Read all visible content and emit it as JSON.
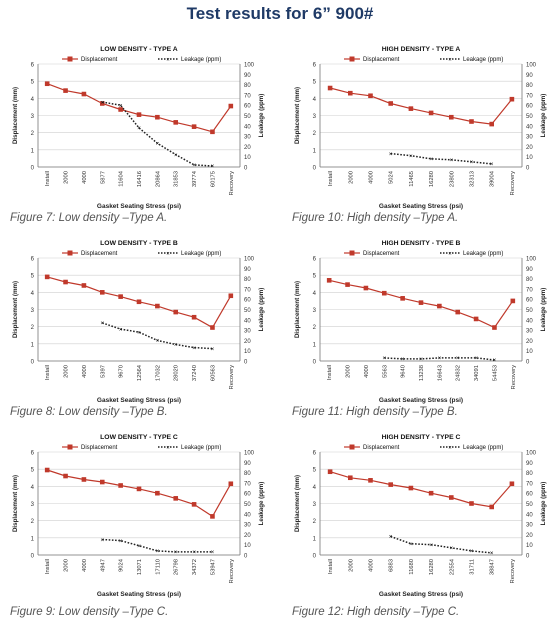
{
  "page": {
    "title": "Test results for 6” 900#"
  },
  "chart_data": [
    {
      "type": "line",
      "title": "LOW DENSITY - TYPE A",
      "caption": "Figure 7: Low density –Type A.",
      "categories": [
        "Install",
        "2000",
        "4000",
        "5877",
        "11604",
        "16416",
        "20864",
        "31853",
        "39774",
        "60175",
        "Recovery"
      ],
      "xlabel": "Gasket Seating Stress (psi)",
      "ylabel": "Displacement (mm)",
      "y2label": "Leakage (ppm)",
      "ylim": [
        0,
        6
      ],
      "y2lim": [
        0,
        100
      ],
      "legend": [
        "Displacement",
        "Leakage (ppm)"
      ],
      "series": [
        {
          "name": "Displacement",
          "axis": "left",
          "values": [
            4.85,
            4.45,
            4.25,
            3.7,
            3.35,
            3.05,
            2.9,
            2.6,
            2.35,
            2.05,
            3.55
          ]
        },
        {
          "name": "Leakage (ppm)",
          "axis": "right",
          "values": [
            null,
            null,
            null,
            63,
            60,
            38,
            23,
            12,
            2,
            1,
            null
          ]
        }
      ]
    },
    {
      "type": "line",
      "title": "HIGH DENSITY - TYPE A",
      "caption": "Figure 10: High density –Type A.",
      "categories": [
        "Install",
        "2000",
        "4000",
        "5024",
        "11465",
        "16280",
        "23800",
        "32313",
        "39004",
        "Recovery"
      ],
      "xlabel": "Gasket Seating Stress (psi)",
      "ylabel": "Displacement (mm)",
      "y2label": "Leakage (ppm)",
      "ylim": [
        0,
        6
      ],
      "y2lim": [
        0,
        100
      ],
      "legend": [
        "Displacement",
        "Leakage (ppm)"
      ],
      "series": [
        {
          "name": "Displacement",
          "axis": "left",
          "values": [
            4.6,
            4.3,
            4.15,
            3.7,
            3.4,
            3.15,
            2.9,
            2.65,
            2.5,
            3.95
          ]
        },
        {
          "name": "Leakage (ppm)",
          "axis": "right",
          "values": [
            null,
            null,
            null,
            13,
            11,
            8,
            7,
            5,
            3,
            null
          ]
        }
      ]
    },
    {
      "type": "line",
      "title": "LOW DENSITY - TYPE B",
      "caption": "Figure 8: Low density –Type B.",
      "categories": [
        "Install",
        "2000",
        "4000",
        "5397",
        "9670",
        "12564",
        "17032",
        "28020",
        "37240",
        "60563",
        "Recovery"
      ],
      "xlabel": "Gasket Seating Stress (psi)",
      "ylabel": "Displacement (mm)",
      "y2label": "Leakage (ppm)",
      "ylim": [
        0,
        6
      ],
      "y2lim": [
        0,
        100
      ],
      "legend": [
        "Displacement",
        "Leakage (ppm)"
      ],
      "series": [
        {
          "name": "Displacement",
          "axis": "left",
          "values": [
            4.9,
            4.6,
            4.4,
            4.0,
            3.75,
            3.45,
            3.2,
            2.85,
            2.55,
            1.95,
            3.8
          ]
        },
        {
          "name": "Leakage (ppm)",
          "axis": "right",
          "values": [
            null,
            null,
            null,
            37,
            31,
            28,
            20,
            16,
            13,
            12,
            null
          ]
        }
      ]
    },
    {
      "type": "line",
      "title": "HIGH DENSITY - TYPE B",
      "caption": "Figure 11: High density –Type B.",
      "categories": [
        "Install",
        "2000",
        "4000",
        "5563",
        "9640",
        "13238",
        "16643",
        "24832",
        "34091",
        "54453",
        "Recovery"
      ],
      "xlabel": "Gasket Seating Stress (psi)",
      "ylabel": "Displacement (mm)",
      "y2label": "Leakage (ppm)",
      "ylim": [
        0,
        6
      ],
      "y2lim": [
        0,
        100
      ],
      "legend": [
        "Displacement",
        "Leakage (ppm)"
      ],
      "series": [
        {
          "name": "Displacement",
          "axis": "left",
          "values": [
            4.7,
            4.45,
            4.25,
            3.95,
            3.65,
            3.4,
            3.2,
            2.85,
            2.45,
            1.95,
            3.5
          ]
        },
        {
          "name": "Leakage (ppm)",
          "axis": "right",
          "values": [
            null,
            null,
            null,
            3,
            2,
            2,
            3,
            3,
            3,
            1,
            null
          ]
        }
      ]
    },
    {
      "type": "line",
      "title": "LOW DENSITY - TYPE C",
      "caption": "Figure 9: Low density –Type C.",
      "categories": [
        "Install",
        "2000",
        "4000",
        "4947",
        "9024",
        "13071",
        "17110",
        "26798",
        "34372",
        "53947",
        "Recovery"
      ],
      "xlabel": "Gasket Seating Stress (psi)",
      "ylabel": "Displacement (mm)",
      "y2label": "Leakage (ppm)",
      "ylim": [
        0,
        6
      ],
      "y2lim": [
        0,
        100
      ],
      "legend": [
        "Displacement",
        "Leakage (ppm)"
      ],
      "series": [
        {
          "name": "Displacement",
          "axis": "left",
          "values": [
            4.95,
            4.6,
            4.4,
            4.25,
            4.05,
            3.85,
            3.6,
            3.3,
            2.95,
            2.25,
            4.15
          ]
        },
        {
          "name": "Leakage (ppm)",
          "axis": "right",
          "values": [
            null,
            null,
            null,
            15,
            14,
            9,
            4,
            3,
            3,
            3,
            null
          ]
        }
      ]
    },
    {
      "type": "line",
      "title": "HIGH DENSITY - TYPE C",
      "caption": "Figure 12: High density –Type C.",
      "categories": [
        "Install",
        "2000",
        "4000",
        "6883",
        "11680",
        "16280",
        "22554",
        "31711",
        "38847",
        "Recovery"
      ],
      "xlabel": "Gasket Seating Stress (psi)",
      "ylabel": "Displacement (mm)",
      "y2label": "Leakage (ppm)",
      "ylim": [
        0,
        6
      ],
      "y2lim": [
        0,
        100
      ],
      "legend": [
        "Displacement",
        "Leakage (ppm)"
      ],
      "series": [
        {
          "name": "Displacement",
          "axis": "left",
          "values": [
            4.85,
            4.5,
            4.35,
            4.1,
            3.9,
            3.6,
            3.35,
            3.0,
            2.8,
            4.15
          ]
        },
        {
          "name": "Leakage (ppm)",
          "axis": "right",
          "values": [
            null,
            null,
            null,
            18,
            11,
            10,
            7,
            4,
            2,
            null
          ]
        }
      ]
    }
  ],
  "colors": {
    "displacement": "#c0392b",
    "leakage": "#222222",
    "grid": "#cfcfcf",
    "title": "#1f3a66"
  }
}
